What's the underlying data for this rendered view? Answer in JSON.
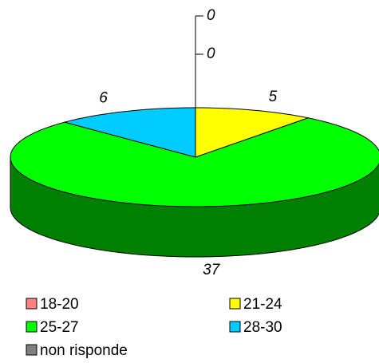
{
  "chart_data": {
    "type": "pie",
    "categories": [
      "18-20",
      "21-24",
      "25-27",
      "28-30",
      "non risponde"
    ],
    "values": [
      0,
      5,
      37,
      6,
      0
    ],
    "colors": [
      "#ff8080",
      "#ffff00",
      "#00ff00",
      "#00ccff",
      "#808080"
    ]
  }
}
